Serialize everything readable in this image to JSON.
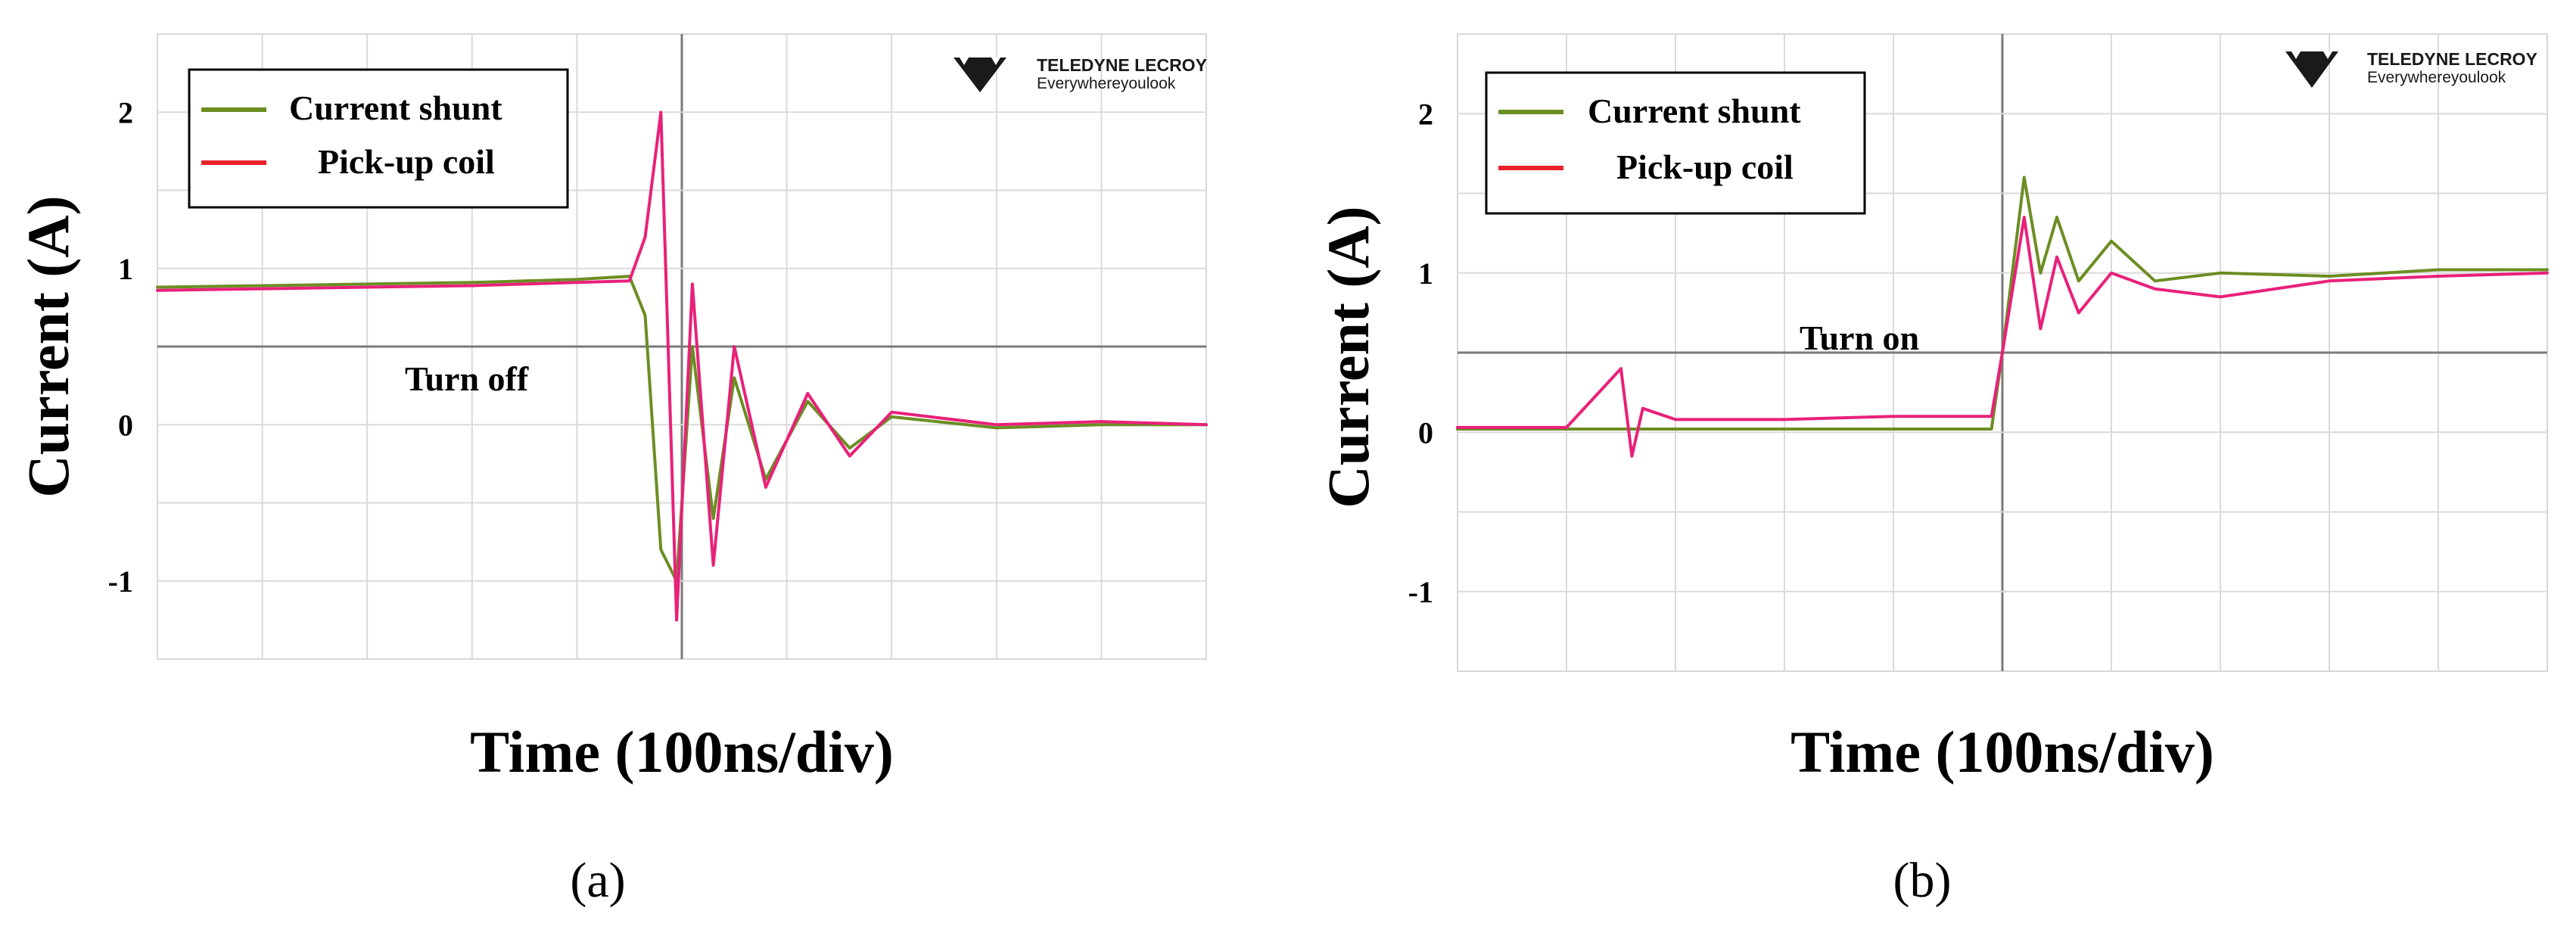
{
  "chart_data": [
    {
      "type": "line",
      "panel_label": "(a)",
      "xlabel": "Time (100ns/div)",
      "ylabel": "Current (A)",
      "y_ticks": [
        "2",
        "1",
        "0",
        "-1"
      ],
      "ylim": [
        -1.5,
        2.5
      ],
      "x_divisions": 10,
      "annotation": "Turn off",
      "legend": {
        "position": "top-left",
        "entries": [
          "Current shunt",
          "Pick-up coil"
        ]
      },
      "logo": {
        "main": "TELEDYNE LECROY",
        "sub": "Everywhereyoulook"
      },
      "grid": true,
      "series": [
        {
          "name": "Current shunt",
          "color": "#6b8e23",
          "x": [
            0,
            1,
            2,
            3,
            4,
            4.5,
            4.65,
            4.8,
            4.95,
            5.1,
            5.3,
            5.5,
            5.8,
            6.2,
            6.6,
            7.0,
            8.0,
            9.0,
            10.0
          ],
          "y": [
            0.88,
            0.89,
            0.9,
            0.91,
            0.93,
            0.95,
            0.7,
            -0.8,
            -1.0,
            0.5,
            -0.6,
            0.3,
            -0.35,
            0.15,
            -0.15,
            0.05,
            -0.02,
            0.0,
            0.0
          ]
        },
        {
          "name": "Pick-up coil",
          "color": "#e8217a",
          "x": [
            0,
            1,
            2,
            3,
            4,
            4.5,
            4.65,
            4.8,
            4.95,
            5.1,
            5.3,
            5.5,
            5.8,
            6.2,
            6.6,
            7.0,
            8.0,
            9.0,
            10.0
          ],
          "y": [
            0.86,
            0.87,
            0.88,
            0.89,
            0.91,
            0.92,
            1.2,
            2.0,
            -1.25,
            0.9,
            -0.9,
            0.5,
            -0.4,
            0.2,
            -0.2,
            0.08,
            0.0,
            0.02,
            0.0
          ]
        }
      ]
    },
    {
      "type": "line",
      "panel_label": "(b)",
      "xlabel": "Time (100ns/div)",
      "ylabel": "Current (A)",
      "y_ticks": [
        "2",
        "1",
        "0",
        "-1"
      ],
      "ylim": [
        -1.5,
        2.5
      ],
      "x_divisions": 10,
      "annotation": "Turn on",
      "legend": {
        "position": "top-left",
        "entries": [
          "Current shunt",
          "Pick-up coil"
        ]
      },
      "logo": {
        "main": "TELEDYNE LECROY",
        "sub": "Everywhereyoulook"
      },
      "grid": true,
      "series": [
        {
          "name": "Current shunt",
          "color": "#6b8e23",
          "x": [
            0,
            1,
            2,
            3,
            4,
            4.9,
            5.0,
            5.2,
            5.35,
            5.5,
            5.7,
            6.0,
            6.4,
            7.0,
            8.0,
            9.0,
            10.0
          ],
          "y": [
            0.02,
            0.02,
            0.02,
            0.02,
            0.02,
            0.02,
            0.5,
            1.6,
            1.0,
            1.35,
            0.95,
            1.2,
            0.95,
            1.0,
            0.98,
            1.02,
            1.02
          ]
        },
        {
          "name": "Pick-up coil",
          "color": "#e8217a",
          "x": [
            0,
            1,
            1.5,
            1.6,
            1.7,
            2.0,
            3.0,
            4.0,
            4.9,
            5.0,
            5.2,
            5.35,
            5.5,
            5.7,
            6.0,
            6.4,
            7.0,
            8.0,
            9.0,
            10.0
          ],
          "y": [
            0.03,
            0.03,
            0.4,
            -0.15,
            0.15,
            0.08,
            0.08,
            0.1,
            0.1,
            0.5,
            1.35,
            0.65,
            1.1,
            0.75,
            1.0,
            0.9,
            0.85,
            0.95,
            0.98,
            1.0
          ]
        }
      ]
    }
  ]
}
